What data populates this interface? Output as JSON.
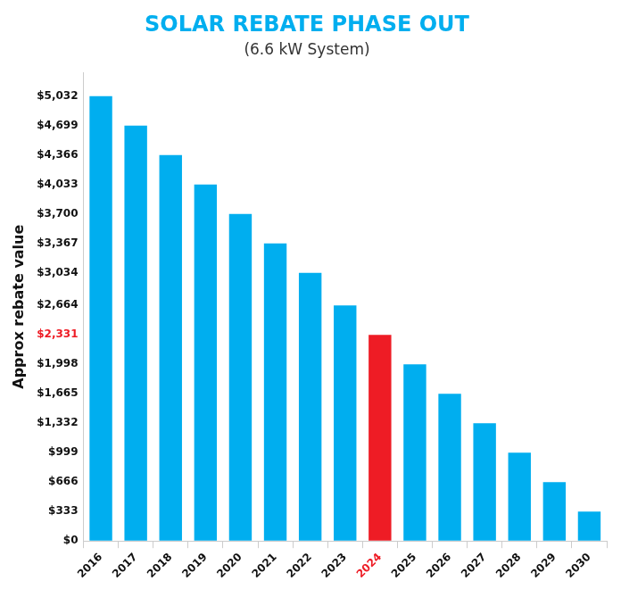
{
  "chart_data": {
    "type": "bar",
    "title": "SOLAR REBATE PHASE OUT",
    "subtitle": "(6.6 kW System)",
    "ylabel": "Approx rebate value",
    "categories": [
      "2016",
      "2017",
      "2018",
      "2019",
      "2020",
      "2021",
      "2022",
      "2023",
      "2024",
      "2025",
      "2026",
      "2027",
      "2028",
      "2029",
      "2030"
    ],
    "values": [
      5032,
      4699,
      4366,
      4033,
      3700,
      3367,
      3034,
      2664,
      2331,
      1998,
      1665,
      1332,
      999,
      666,
      333
    ],
    "colors": [
      "#00AEEF",
      "#00AEEF",
      "#00AEEF",
      "#00AEEF",
      "#00AEEF",
      "#00AEEF",
      "#00AEEF",
      "#00AEEF",
      "#EE1C25",
      "#00AEEF",
      "#00AEEF",
      "#00AEEF",
      "#00AEEF",
      "#00AEEF",
      "#00AEEF"
    ],
    "ylim": [
      0,
      5300
    ],
    "yticks": [
      {
        "value": 0,
        "label": "$0"
      },
      {
        "value": 333,
        "label": "$333"
      },
      {
        "value": 666,
        "label": "$666"
      },
      {
        "value": 999,
        "label": "$999"
      },
      {
        "value": 1332,
        "label": "$1,332"
      },
      {
        "value": 1665,
        "label": "$1,665"
      },
      {
        "value": 1998,
        "label": "$1,998"
      },
      {
        "value": 2331,
        "label": "$2,331"
      },
      {
        "value": 2664,
        "label": "$2,664"
      },
      {
        "value": 3034,
        "label": "$3,034"
      },
      {
        "value": 3367,
        "label": "$3,367"
      },
      {
        "value": 3700,
        "label": "$3,700"
      },
      {
        "value": 4033,
        "label": "$4,033"
      },
      {
        "value": 4366,
        "label": "$4,366"
      },
      {
        "value": 4699,
        "label": "$4,699"
      },
      {
        "value": 5032,
        "label": "$5,032"
      }
    ],
    "grid": false
  }
}
